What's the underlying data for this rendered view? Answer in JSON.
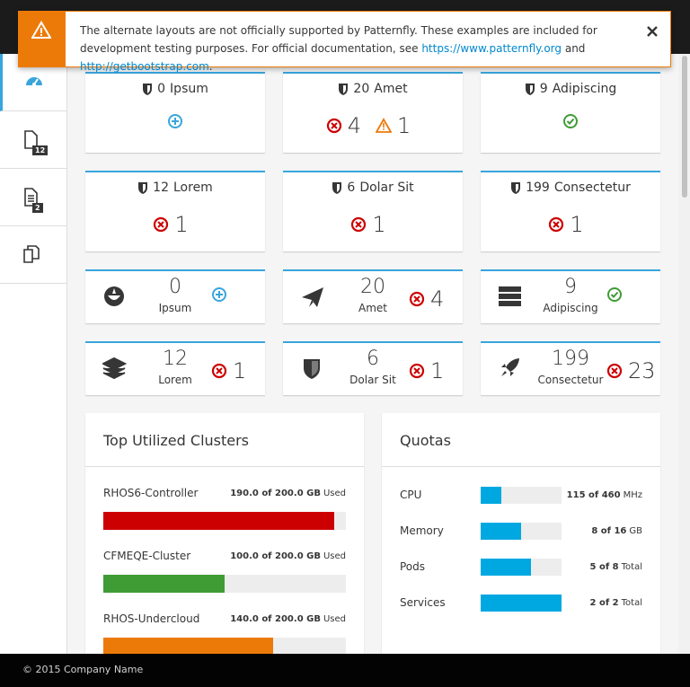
{
  "alert": {
    "text_before": "The alternate layouts are not officially supported by Patternfly. These examples are included for development testing purposes. For official documentation, see ",
    "link1": "https://www.patternfly.org",
    "text_between": " and ",
    "link2": "http://getbootstrap.com",
    "text_after": "."
  },
  "nav": {
    "items": [
      {
        "icon": "dashboard",
        "active": true
      },
      {
        "icon": "file",
        "badge": 12
      },
      {
        "icon": "file-text",
        "badge": 2
      },
      {
        "icon": "copy"
      }
    ]
  },
  "cards": [
    {
      "count": 0,
      "title": "Ipsum",
      "status": [
        {
          "kind": "add"
        }
      ]
    },
    {
      "count": 20,
      "title": "Amet",
      "status": [
        {
          "kind": "error",
          "count": 4
        },
        {
          "kind": "warning",
          "count": 1
        }
      ]
    },
    {
      "count": 9,
      "title": "Adipiscing",
      "status": [
        {
          "kind": "ok"
        }
      ]
    },
    {
      "count": 12,
      "title": "Lorem",
      "status": [
        {
          "kind": "error",
          "count": 1
        }
      ]
    },
    {
      "count": 6,
      "title": "Dolar Sit",
      "status": [
        {
          "kind": "error",
          "count": 1
        }
      ]
    },
    {
      "count": 199,
      "title": "Consectetur",
      "status": [
        {
          "kind": "error",
          "count": 1
        }
      ]
    }
  ],
  "mini_cards": [
    {
      "icon": "rebel",
      "count": 0,
      "title": "Ipsum",
      "status": [
        {
          "kind": "add"
        }
      ]
    },
    {
      "icon": "plane",
      "count": 20,
      "title": "Amet",
      "status": [
        {
          "kind": "error",
          "count": 4
        }
      ]
    },
    {
      "icon": "server",
      "count": 9,
      "title": "Adipiscing",
      "status": [
        {
          "kind": "ok"
        }
      ]
    },
    {
      "icon": "layers",
      "count": 12,
      "title": "Lorem",
      "status": [
        {
          "kind": "error",
          "count": 1
        }
      ]
    },
    {
      "icon": "shield",
      "count": 6,
      "title": "Dolar Sit",
      "status": [
        {
          "kind": "error",
          "count": 1
        }
      ]
    },
    {
      "icon": "rocket",
      "count": 199,
      "title": "Consectetur",
      "status": [
        {
          "kind": "error",
          "count": 23
        }
      ]
    }
  ],
  "clusters": {
    "title": "Top Utilized Clusters",
    "items": [
      {
        "name": "RHOS6-Controller",
        "label": "190.0 of 200.0 GB",
        "unit": "Used",
        "used": 190,
        "total": 200,
        "color": "#cc0000"
      },
      {
        "name": "CFMEQE-Cluster",
        "label": "100.0 of 200.0 GB",
        "unit": "Used",
        "used": 100,
        "total": 200,
        "color": "#3f9c35"
      },
      {
        "name": "RHOS-Undercloud",
        "label": "140.0 of 200.0 GB",
        "unit": "Used",
        "used": 140,
        "total": 200,
        "color": "#ec7a08"
      }
    ]
  },
  "quotas": {
    "title": "Quotas",
    "items": [
      {
        "name": "CPU",
        "label": "115 of 460",
        "unit": "MHz",
        "used": 115,
        "total": 460
      },
      {
        "name": "Memory",
        "label": "8 of 16",
        "unit": "GB",
        "used": 8,
        "total": 16
      },
      {
        "name": "Pods",
        "label": "5 of 8",
        "unit": "Total",
        "used": 5,
        "total": 8
      },
      {
        "name": "Services",
        "label": "2 of 2",
        "unit": "Total",
        "used": 2,
        "total": 2
      }
    ],
    "color": "#00a8e1"
  },
  "footer": {
    "text": "© 2015 Company Name"
  }
}
